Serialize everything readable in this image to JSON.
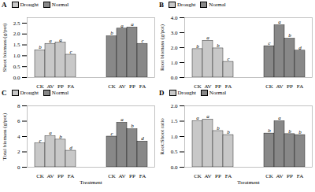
{
  "chart_data": [
    {
      "type": "bar",
      "title": "A",
      "ylabel": "Shoot biomass (g/pot)",
      "categories": [
        "CK",
        "AV",
        "PP",
        "FA"
      ],
      "series": [
        {
          "name": "Drought",
          "color": "#c8c8c8",
          "values": [
            1.25,
            1.55,
            1.6,
            1.05
          ],
          "annotations": [
            "b",
            "a",
            "a",
            "c"
          ]
        },
        {
          "name": "Normal",
          "color": "#888888",
          "values": [
            1.9,
            2.25,
            2.3,
            1.55
          ],
          "annotations": [
            "b",
            "a",
            "a",
            "c"
          ]
        }
      ],
      "ylim": [
        0,
        2.75
      ],
      "yticks": [
        {
          "value": 0.0,
          "label": "0.0"
        },
        0.5,
        {
          "value": 1.0,
          "label": "1.0"
        },
        1.5,
        {
          "value": 2.0,
          "label": "2.0"
        },
        2.5
      ],
      "legend": "upper left"
    },
    {
      "type": "bar",
      "title": "B",
      "ylabel": "Root biomass (g/pot)",
      "categories": [
        "CK",
        "AV",
        "PP",
        "FA"
      ],
      "series": [
        {
          "name": "Drought",
          "color": "#c8c8c8",
          "values": [
            1.9,
            2.45,
            1.95,
            1.05
          ],
          "annotations": [
            "b",
            "a",
            "b",
            "c"
          ]
        },
        {
          "name": "Normal",
          "color": "#888888",
          "values": [
            2.1,
            3.5,
            2.6,
            1.8
          ],
          "annotations": [
            "c",
            "a",
            "b",
            "d"
          ]
        }
      ],
      "ylim": [
        0,
        4.0
      ],
      "yticks": [
        {
          "value": 0.0,
          "label": "0.0"
        },
        {
          "value": 1.0,
          "label": "1.0"
        },
        {
          "value": 2.0,
          "label": "2.0"
        },
        {
          "value": 3.0,
          "label": "3.0"
        },
        {
          "value": 4.0,
          "label": "4.0"
        }
      ],
      "legend": "upper left"
    },
    {
      "type": "bar",
      "title": "C",
      "ylabel": "Total biomass (g/pot)",
      "xlabel": "Treatment",
      "categories": [
        "CK",
        "AV",
        "PP",
        "FA"
      ],
      "series": [
        {
          "name": "Drought",
          "color": "#c8c8c8",
          "values": [
            3.1,
            4.05,
            3.6,
            2.15
          ],
          "annotations": [
            "c",
            "a",
            "b",
            "d"
          ]
        },
        {
          "name": "Normal",
          "color": "#888888",
          "values": [
            4.0,
            5.8,
            4.95,
            3.35
          ],
          "annotations": [
            "c",
            "a",
            "b",
            "d"
          ]
        }
      ],
      "ylim": [
        0,
        8.0
      ],
      "yticks": [
        0,
        2,
        4,
        6,
        8
      ],
      "legend": "upper left"
    },
    {
      "type": "bar",
      "title": "D",
      "ylabel": "Root:Shoot ratio",
      "xlabel": "Treatment",
      "categories": [
        "CK",
        "AV",
        "PP",
        "FA"
      ],
      "series": [
        {
          "name": "Drought",
          "color": "#c8c8c8",
          "values": [
            1.5,
            1.55,
            1.18,
            1.05
          ],
          "annotations": [
            "a",
            "a",
            "b",
            "b"
          ]
        },
        {
          "name": "Normal",
          "color": "#888888",
          "values": [
            1.1,
            1.5,
            1.08,
            1.05
          ],
          "annotations": [
            "b",
            "a",
            "b",
            "b"
          ]
        }
      ],
      "ylim": [
        0,
        2.0
      ],
      "yticks": [
        {
          "value": 0.0,
          "label": "0.0"
        },
        0.5,
        {
          "value": 1.0,
          "label": "1.0"
        },
        1.5,
        {
          "value": 2.0,
          "label": "2.0"
        }
      ],
      "legend": "upper left"
    }
  ]
}
